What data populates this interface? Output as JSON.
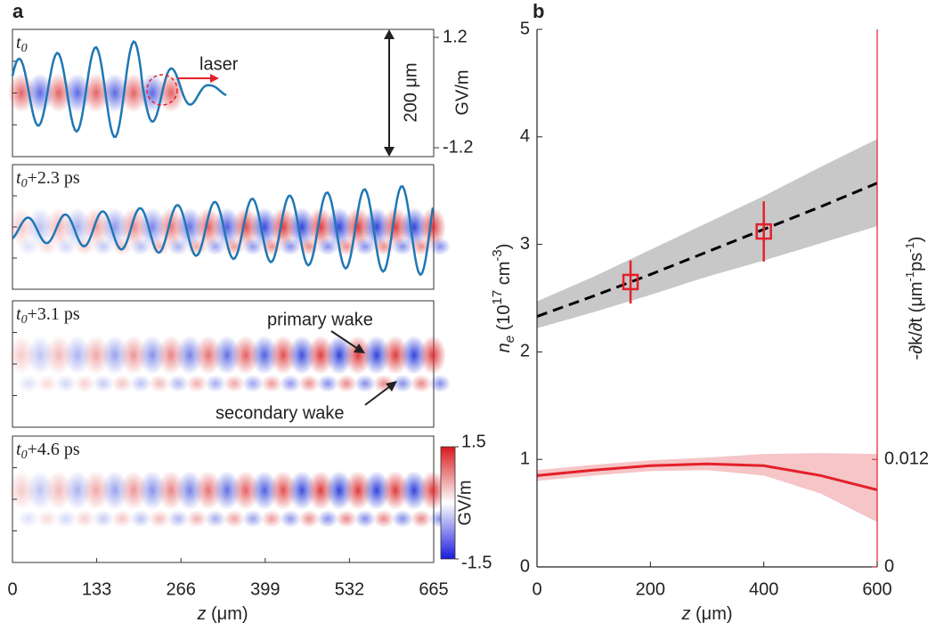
{
  "chart_data": [
    {
      "type": "fieldmap",
      "panel_label": "a",
      "frame_labels": [
        [
          "t",
          "0"
        ],
        [
          "t",
          "0",
          "+2.3 ps"
        ],
        [
          "t",
          "0",
          "+3.1 ps"
        ],
        [
          "t",
          "0",
          "+4.6 ps"
        ]
      ],
      "xlim": [
        0,
        665
      ],
      "xticks": [
        0,
        133,
        266,
        399,
        532,
        665
      ],
      "xlabel": [
        "z",
        " (μm)"
      ],
      "field_ticks": [
        1.2,
        -1.2
      ],
      "field_unit": "GV/m",
      "scale_bar": "200 μm",
      "colorbar_ticks": [
        1.5,
        -1.5
      ],
      "colorbar_unit": "GV/m",
      "annotations": [
        "laser",
        "primary wake",
        "secondary wake"
      ]
    },
    {
      "type": "line",
      "panel_label": "b",
      "x": [
        0,
        100,
        200,
        300,
        400,
        500,
        600
      ],
      "xlim": [
        0,
        600
      ],
      "xticks": [
        0,
        200,
        400,
        600
      ],
      "xlabel": [
        "z",
        " (μm)"
      ],
      "ylim": [
        0,
        5
      ],
      "yticks": [
        0,
        1,
        2,
        3,
        4,
        5
      ],
      "ylabel": [
        "n",
        "e",
        " (10",
        "17",
        " cm",
        "-3",
        ")"
      ],
      "y2lim": [
        0,
        0.06
      ],
      "y2ticks": [
        0,
        0.012
      ],
      "y2label": [
        "-∂k/∂t (μm",
        "-1",
        "ps",
        "-1",
        ")"
      ],
      "y2color": "#e3202b",
      "series": [
        {
          "color": "#000000",
          "style": "dashed",
          "values": [
            2.33,
            2.52,
            2.72,
            2.93,
            3.14,
            3.35,
            3.57
          ],
          "band_lower": [
            2.22,
            2.37,
            2.53,
            2.7,
            2.85,
            3.01,
            3.17
          ],
          "band_upper": [
            2.47,
            2.7,
            2.95,
            3.2,
            3.45,
            3.72,
            3.98
          ],
          "band_color": "#c8c8c8"
        },
        {
          "color": "#e3202b",
          "style": "solid",
          "axis": "y2",
          "values": [
            0.0102,
            0.0108,
            0.0113,
            0.0115,
            0.0113,
            0.0102,
            0.0086
          ],
          "band_lower": [
            0.0096,
            0.0102,
            0.0107,
            0.0108,
            0.0102,
            0.0082,
            0.005
          ],
          "band_upper": [
            0.0108,
            0.0114,
            0.0119,
            0.0122,
            0.0126,
            0.0127,
            0.0126
          ],
          "band_color": "#f6c5c7"
        }
      ],
      "points": {
        "x": [
          165,
          400
        ],
        "values": [
          2.65,
          3.12
        ],
        "errors": [
          0.2,
          0.28
        ],
        "color": "#e3202b"
      }
    }
  ]
}
